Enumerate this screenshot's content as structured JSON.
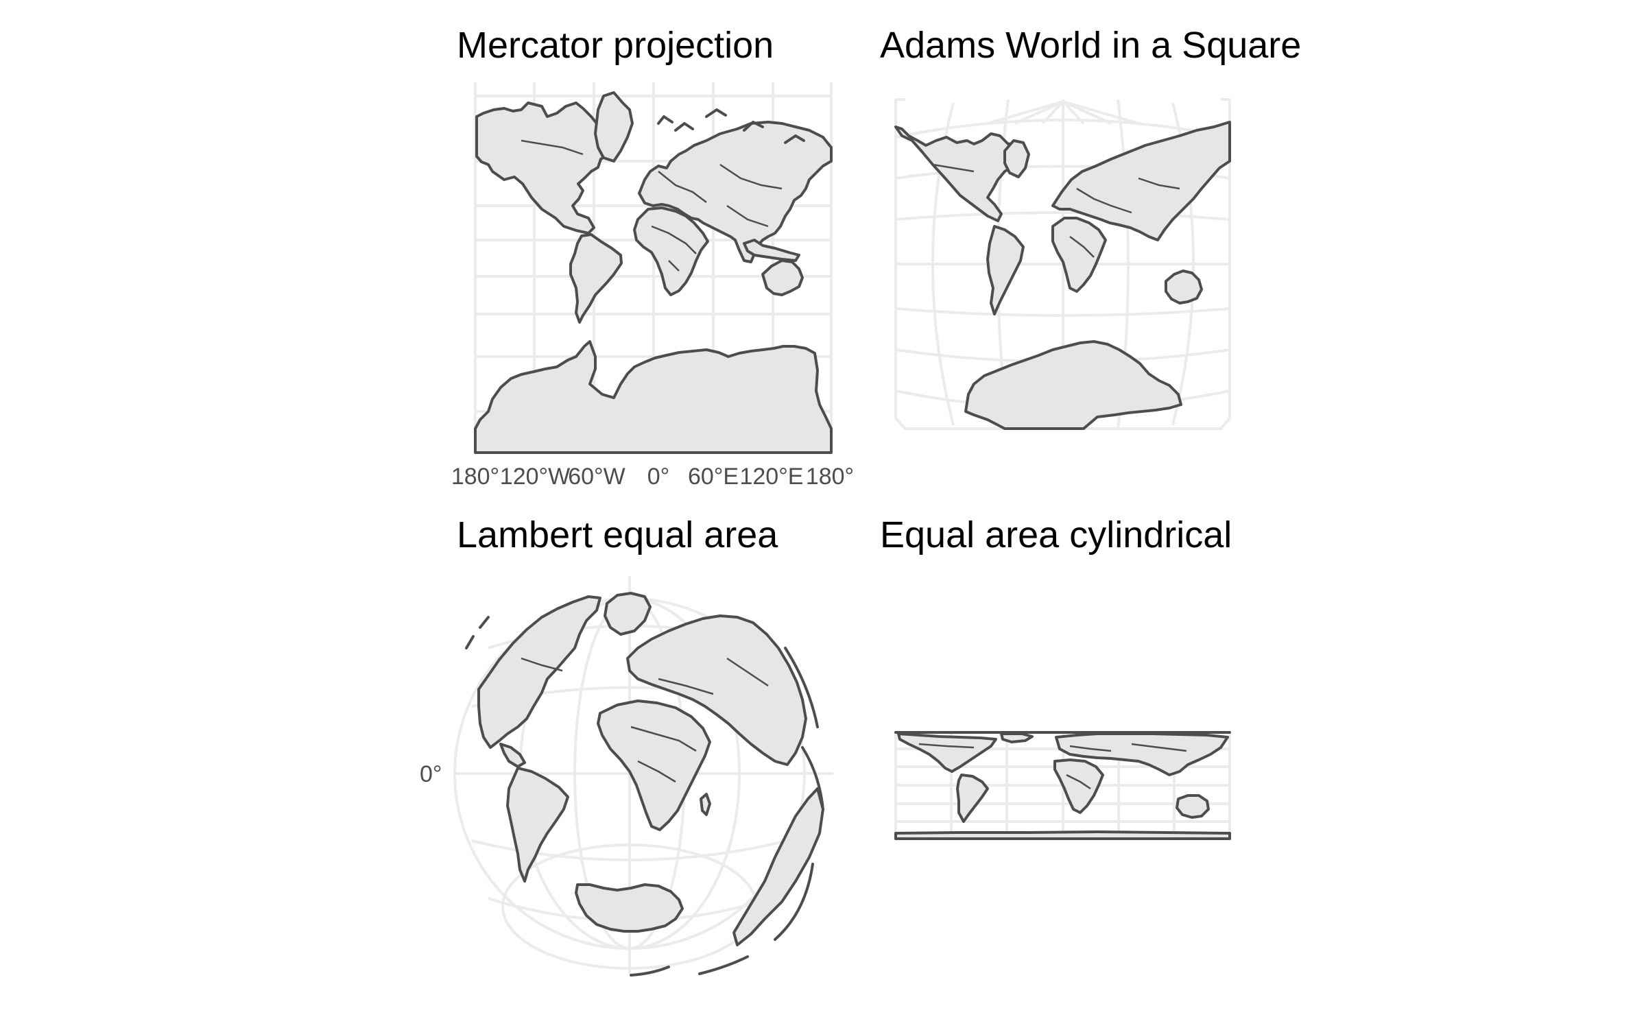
{
  "figure": {
    "colors": {
      "land": "#e6e6e6",
      "outline": "#4d4d4d",
      "grid": "#ebebeb",
      "label": "#4d4d4d",
      "title": "#000000"
    },
    "panels": [
      {
        "title": "Mercator projection",
        "x_ticks": [
          "180°",
          "120°W",
          "60°W",
          "0°",
          "60°E",
          "120°E",
          "180°"
        ]
      },
      {
        "title": "Adams World in a Square"
      },
      {
        "title": "Lambert equal area",
        "y_ticks": [
          "0°"
        ]
      },
      {
        "title": "Equal area cylindrical"
      }
    ]
  }
}
